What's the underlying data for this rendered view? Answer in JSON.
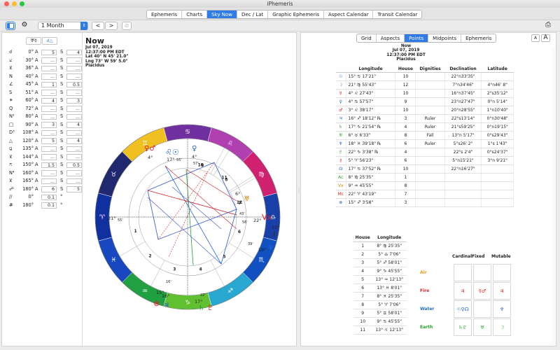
{
  "window": {
    "title": "iPhemeris"
  },
  "tabs": [
    "Ephemeris",
    "Charts",
    "Sky Now",
    "Dec / Lat",
    "Graphic Ephemeris",
    "Aspect Calendar",
    "Transit Calendar"
  ],
  "active_tab": "Sky Now",
  "toolbar": {
    "period": "1 Month",
    "prev": "<",
    "next": ">"
  },
  "left_header": {
    "icon1": "♅☿",
    "icon2": "☌△"
  },
  "aspect_rows": [
    {
      "glyph": "☌",
      "deg": "0°",
      "k1": "A",
      "v1": "5",
      "k2": "S",
      "v2": "4"
    },
    {
      "glyph": "⚺",
      "deg": "30°",
      "k1": "A",
      "v1": "...",
      "k2": "S",
      "v2": "..."
    },
    {
      "glyph": "⊻",
      "deg": "36°",
      "k1": "A",
      "v1": "...",
      "k2": "S",
      "v2": "..."
    },
    {
      "glyph": "N",
      "deg": "40°",
      "k1": "A",
      "v1": "...",
      "k2": "S",
      "v2": "..."
    },
    {
      "glyph": "∠",
      "deg": "45°",
      "k1": "A",
      "v1": "1",
      "k2": "S",
      "v2": "0.5"
    },
    {
      "glyph": "S",
      "deg": "51°",
      "k1": "A",
      "v1": "...",
      "k2": "S",
      "v2": "..."
    },
    {
      "glyph": "✶",
      "deg": "60°",
      "k1": "A",
      "v1": "4",
      "k2": "S",
      "v2": "3"
    },
    {
      "glyph": "Q",
      "deg": "72°",
      "k1": "A",
      "v1": "...",
      "k2": "S",
      "v2": "..."
    },
    {
      "glyph": "N²",
      "deg": "80°",
      "k1": "A",
      "v1": "...",
      "k2": "S",
      "v2": "..."
    },
    {
      "glyph": "□",
      "deg": "90°",
      "k1": "A",
      "v1": "3",
      "k2": "S",
      "v2": "4"
    },
    {
      "glyph": "D³",
      "deg": "108°",
      "k1": "A",
      "v1": "...",
      "k2": "S",
      "v2": "..."
    },
    {
      "glyph": "△",
      "deg": "120°",
      "k1": "A",
      "v1": "5",
      "k2": "S",
      "v2": "4"
    },
    {
      "glyph": "⚼",
      "deg": "135°",
      "k1": "A",
      "v1": "...",
      "k2": "S",
      "v2": "..."
    },
    {
      "glyph": "⊻",
      "deg": "144°",
      "k1": "A",
      "v1": "...",
      "k2": "S",
      "v2": "..."
    },
    {
      "glyph": "⚻",
      "deg": "150°",
      "k1": "A",
      "v1": "1.5",
      "k2": "S",
      "v2": "0.5"
    },
    {
      "glyph": "N⁴",
      "deg": "160°",
      "k1": "A",
      "v1": "...",
      "k2": "S",
      "v2": "..."
    },
    {
      "glyph": "⊻",
      "deg": "165°",
      "k1": "A",
      "v1": "...",
      "k2": "S",
      "v2": "..."
    },
    {
      "glyph": "☍",
      "deg": "180°",
      "k1": "A",
      "v1": "6",
      "k2": "S",
      "v2": "5"
    },
    {
      "glyph": "//",
      "deg": "0°",
      "k1": "",
      "v1": "0.1",
      "k2": "°",
      "v2": ""
    },
    {
      "glyph": "#",
      "deg": "180°",
      "k1": "",
      "v1": "0.1",
      "k2": "°",
      "v2": ""
    }
  ],
  "now_info": {
    "title": "Now",
    "date": "Jul 07, 2019",
    "time": "12:37:00 PM EDT",
    "lat": "Lat 40° N 45' 21.0\"",
    "lng": "Lng 73° W 59' 5.0\"",
    "system": "Placidus"
  },
  "wheel_labels": {
    "asc": "21°",
    "asc_min": "55'",
    "dsc": "22°",
    "dsc_min": "56'",
    "mc": "17°",
    "mc_min": "55'",
    "ic": "17°",
    "ic_min": "22'",
    "top_a": "4°",
    "top_b": "4°",
    "top_c": "57'",
    "top_d": "4°",
    "top_e": "37'",
    "top_f": "17°",
    "top_g": "17'",
    "top_h": "28'",
    "right_a": "6°",
    "right_b": "43'",
    "right_c": "18°",
    "right_d": "39'",
    "right_e": "22°",
    "right_f": "56'",
    "right_g": "10°",
    "bottom_a": "15°",
    "bottom_b": "16°",
    "bottom_c": "16'",
    "bottom_d": "16'",
    "bottom_e": "17°",
    "bottom_f": "22'",
    "bottom_g": "15°",
    "house_nums": [
      "10",
      "11",
      "12",
      "1",
      "2",
      "3",
      "4",
      "5",
      "6",
      "7",
      "8",
      "9"
    ]
  },
  "right_tabs": [
    "Grid",
    "Aspects",
    "Points",
    "Midpoints",
    "Ephemeris"
  ],
  "right_active": "Points",
  "font_buttons": [
    "A",
    "A"
  ],
  "points_header": [
    "",
    "Longitude",
    "House",
    "Dignities",
    "Declination",
    "Latitude"
  ],
  "points": [
    {
      "p": "☉",
      "lon": "15° ♋ 17'21\"",
      "h": "10",
      "d": "",
      "dec": "22°n33'35\"",
      "lat": ""
    },
    {
      "p": "☽",
      "lon": "21° ♍ 55'43\"",
      "h": "12",
      "d": "",
      "dec": "7°n34'46\"",
      "lat": "4°n46' 8\""
    },
    {
      "p": "☿",
      "lon": "4° ♌ 27'43\"",
      "h": "10",
      "d": "",
      "dec": "16°n37'45\"",
      "lat": "2°s35'12\""
    },
    {
      "p": "♀",
      "lon": "4° ♋ 57'57\"",
      "h": "9",
      "d": "",
      "dec": "23°n27'47\"",
      "lat": "0°n 5'14\""
    },
    {
      "p": "♂",
      "lon": "3° ♌ 38'17\"",
      "h": "10",
      "d": "",
      "dec": "20°n28'55\"",
      "lat": "1°n10'40\""
    },
    {
      "p": "♃",
      "lon": "16° ♐ 18'12\" ℞",
      "h": "3",
      "d": "Ruler",
      "dec": "22°s13'14\"",
      "lat": "0°n30'48\""
    },
    {
      "p": "♄",
      "lon": "17° ♑ 21'54\" ℞",
      "h": "4",
      "d": "Ruler",
      "dec": "21°s59'25\"",
      "lat": "0°n19'15\""
    },
    {
      "p": "♅",
      "lon": "6° ♉ 6'33\"",
      "h": "8",
      "d": "Fall",
      "dec": "13°n 5'17\"",
      "lat": "0°s29'43\""
    },
    {
      "p": "♆",
      "lon": "18° ♓ 39'18\" ℞",
      "h": "6",
      "d": "Ruler",
      "dec": "5°s26' 2\"",
      "lat": "1°s 1'43\""
    },
    {
      "p": "♇",
      "lon": "22° ♑ 3'38\" ℞",
      "h": "4",
      "d": "",
      "dec": "22°s 2'4\"",
      "lat": "0°s24'37\""
    },
    {
      "p": "⚷",
      "lon": "5° ♈ 56'23\"",
      "h": "6",
      "d": "",
      "dec": "5°n15'21\"",
      "lat": "3°n 9'21\""
    },
    {
      "p": "☊",
      "lon": "17° ♋ 37'52\" ℞",
      "h": "10",
      "d": "",
      "dec": "22°n16'27\"",
      "lat": ""
    },
    {
      "p": "Ac",
      "lon": "8° ♍ 25'35\"",
      "h": "1",
      "d": "",
      "dec": "",
      "lat": ""
    },
    {
      "p": "Vx",
      "lon": "9° ♒ 45'55\"",
      "h": "8",
      "d": "",
      "dec": "",
      "lat": ""
    },
    {
      "p": "Mc",
      "lon": "22° ♈ 43'19\"",
      "h": "7",
      "d": "",
      "dec": "",
      "lat": ""
    },
    {
      "p": "⊗",
      "lon": "15° ♐ 3'58\"",
      "h": "3",
      "d": "",
      "dec": "",
      "lat": ""
    }
  ],
  "houses_header": [
    "House",
    "Longitude"
  ],
  "houses": [
    {
      "h": "1",
      "lon": "8° ♍ 25'35\""
    },
    {
      "h": "2",
      "lon": "5° ♎ 7'06\""
    },
    {
      "h": "3",
      "lon": "5° ♐ 58'01\""
    },
    {
      "h": "4",
      "lon": "9° ♑ 45'55\""
    },
    {
      "h": "5",
      "lon": "13° ♒ 12'13\""
    },
    {
      "h": "6",
      "lon": "13° ♓ 8'01\""
    },
    {
      "h": "7",
      "lon": "8° ♓ 25'35\""
    },
    {
      "h": "8",
      "lon": "5° ♈ 7'06\""
    },
    {
      "h": "9",
      "lon": "5° ♊ 58'01\""
    },
    {
      "h": "10",
      "lon": "9° ♋ 45'55\""
    },
    {
      "h": "11",
      "lon": "13° ♌ 12'13\""
    }
  ],
  "modality_header": [
    "Cardinal",
    "Fixed",
    "Mutable"
  ],
  "elements": [
    {
      "name": "Air",
      "color": "#f29a18",
      "cells": [
        "",
        "",
        ""
      ]
    },
    {
      "name": "Fire",
      "color": "#e02020",
      "cells": [
        "♃",
        "☿♂",
        "♃"
      ]
    },
    {
      "name": "Water",
      "color": "#2070d0",
      "cells": [
        "☉♀☊",
        "",
        "♆"
      ]
    },
    {
      "name": "Earth",
      "color": "#28a028",
      "cells": [
        "♄♇",
        "♅",
        "☽"
      ]
    }
  ],
  "colors": {
    "accent": "#2f7be8"
  }
}
